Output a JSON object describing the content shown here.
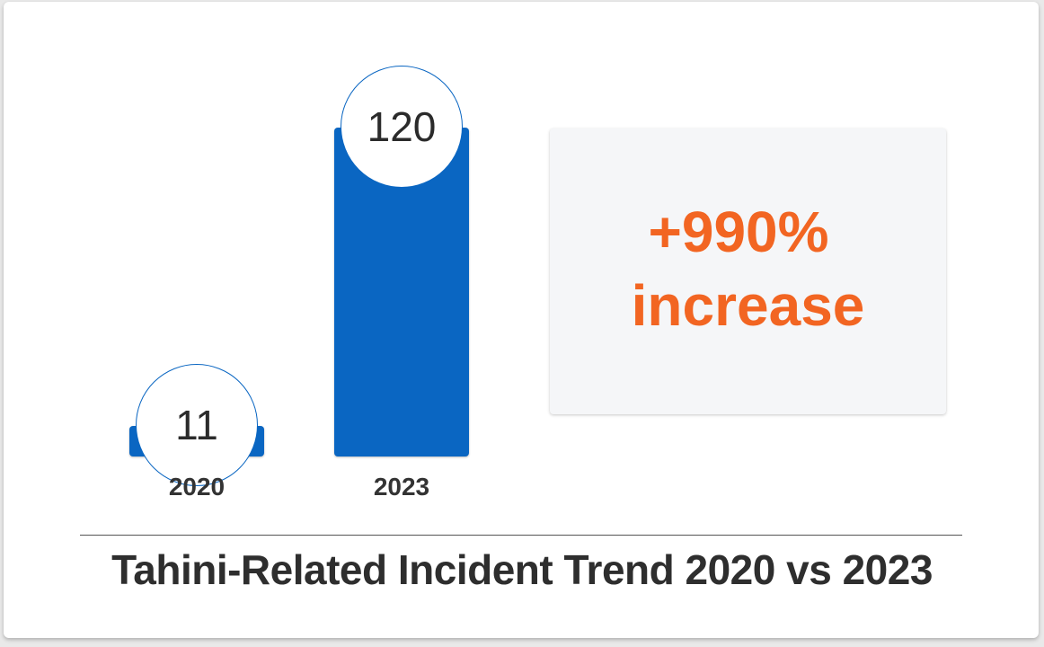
{
  "chart_data": {
    "type": "bar",
    "title": "Tahini-Related Incident Trend 2020 vs 2023",
    "categories": [
      "2020",
      "2023"
    ],
    "values": [
      11,
      120
    ],
    "value_labels": [
      "11",
      "120"
    ],
    "ylim": [
      0,
      120
    ],
    "grid": false,
    "legend": "none",
    "annotation": {
      "value": "+990%",
      "text": "increase"
    }
  },
  "colors": {
    "bar": "#0a66c2",
    "accent": "#f26522",
    "text": "#2e2e2e"
  }
}
